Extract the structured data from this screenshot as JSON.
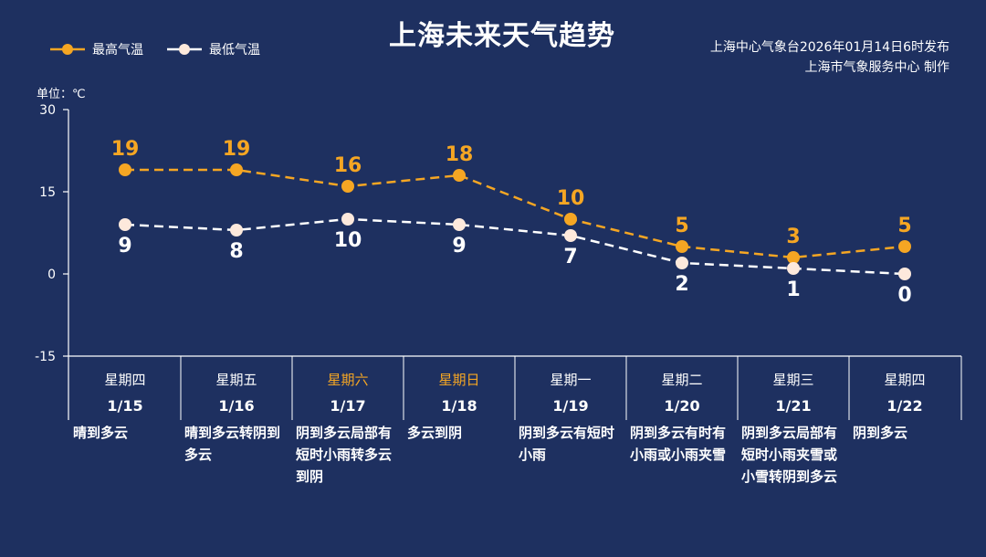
{
  "header": {
    "title": "上海未来天气趋势",
    "issuer_line1": "上海中心气象台2026年01月14日6时发布",
    "issuer_line2": "上海市气象服务中心  制作"
  },
  "legend": {
    "high_label": "最高气温",
    "low_label": "最低气温"
  },
  "unit_label": "单位：℃",
  "colors": {
    "background": "#1e3060",
    "high": "#f5a623",
    "low": "#ffffff",
    "weekend_text": "#f5a623"
  },
  "chart_data": {
    "type": "line",
    "title": "上海未来天气趋势",
    "ylabel": "单位：℃",
    "ylim": [
      -15,
      30
    ],
    "yticks": [
      30,
      15,
      0,
      -15
    ],
    "grid": false,
    "legend_position": "top-left",
    "categories": [
      "1/15",
      "1/16",
      "1/17",
      "1/18",
      "1/19",
      "1/20",
      "1/21",
      "1/22"
    ],
    "weekdays": [
      "星期四",
      "星期五",
      "星期六",
      "星期日",
      "星期一",
      "星期二",
      "星期三",
      "星期四"
    ],
    "weekend": [
      false,
      false,
      true,
      true,
      false,
      false,
      false,
      false
    ],
    "conditions": [
      "晴到多云",
      "晴到多云转阴到多云",
      "阴到多云局部有短时小雨转多云到阴",
      "多云到阴",
      "阴到多云有短时小雨",
      "阴到多云有时有小雨或小雨夹雪",
      "阴到多云局部有短时小雨夹雪或小雪转阴到多云",
      "阴到多云"
    ],
    "series": [
      {
        "name": "最高气温",
        "values": [
          19,
          19,
          16,
          18,
          10,
          5,
          3,
          5
        ]
      },
      {
        "name": "最低气温",
        "values": [
          9,
          8,
          10,
          9,
          7,
          2,
          1,
          0
        ]
      }
    ]
  }
}
